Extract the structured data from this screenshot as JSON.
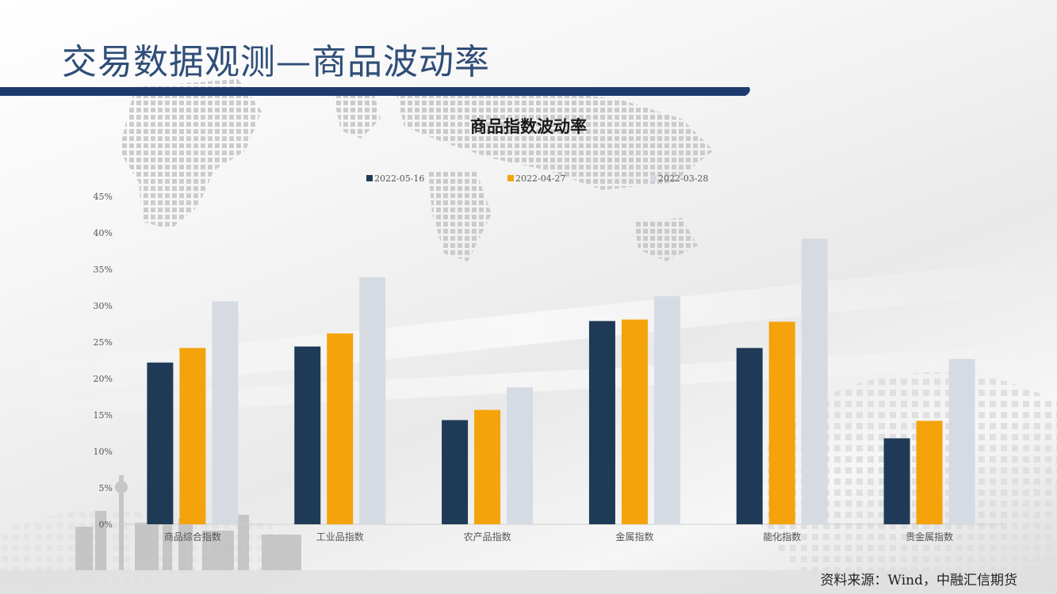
{
  "slide": {
    "title": "交易数据观测—商品波动率",
    "source": "资料来源：Wind，中融汇信期货"
  },
  "colors": {
    "title_text": "#2f4e78",
    "title_bar": "#1e3a6e",
    "series": [
      "#1f3a57",
      "#f5a30a",
      "#d6dbe3"
    ]
  },
  "chart_data": {
    "type": "bar",
    "title": "商品指数波动率",
    "categories": [
      "商品综合指数",
      "工业品指数",
      "农产品指数",
      "金属指数",
      "能化指数",
      "贵金属指数"
    ],
    "series": [
      {
        "name": "2022-05-16",
        "values": [
          0.222,
          0.244,
          0.143,
          0.279,
          0.242,
          0.118
        ]
      },
      {
        "name": "2022-04-27",
        "values": [
          0.242,
          0.262,
          0.157,
          0.281,
          0.278,
          0.142
        ]
      },
      {
        "name": "2022-03-28",
        "values": [
          0.306,
          0.339,
          0.188,
          0.313,
          0.392,
          0.227
        ]
      }
    ],
    "y_ticks": [
      "0%",
      "5%",
      "10%",
      "15%",
      "20%",
      "25%",
      "30%",
      "35%",
      "40%",
      "45%"
    ],
    "ylim": [
      0,
      0.45
    ],
    "y_format": "percent",
    "grid": false,
    "legend_position": "top-center"
  }
}
